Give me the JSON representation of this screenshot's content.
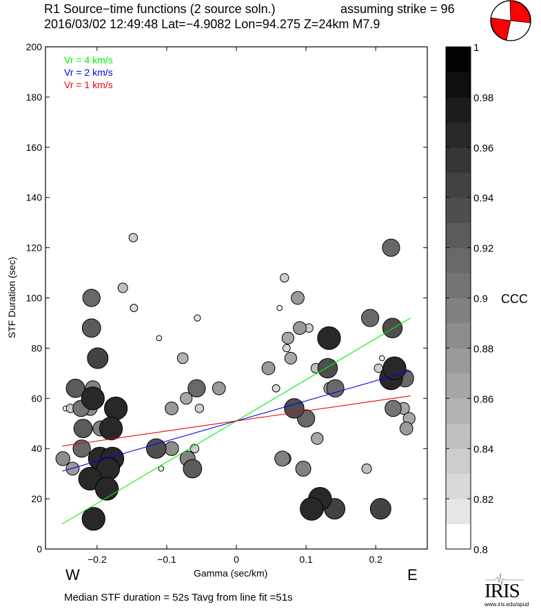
{
  "header": {
    "title": "R1 Source−time functions (2 source soln.)",
    "strike_text": "assuming strike = 96",
    "subtitle": "2016/03/02 12:49:48  Lat=−4.9082 Lon=94.275  Z=24km  M7.9"
  },
  "footer": {
    "summary": "Median STF duration = 52s    Tavg from line fit =51s",
    "west_label": "W",
    "east_label": "E",
    "logo_text": "IRIS",
    "logo_url": "www.iris.edu/spud"
  },
  "colors": {
    "vr4": "#00ee00",
    "vr2": "#0000ee",
    "vr1": "#ee0000",
    "beachball": "#ff0000"
  },
  "chart_data": {
    "type": "scatter",
    "title": "R1 Source−time functions (2 source soln.)",
    "xlabel": "Gamma (sec/km)",
    "ylabel": "STF Duration (sec)",
    "xlim": [
      -0.274,
      0.274
    ],
    "ylim": [
      0,
      200
    ],
    "xticks": [
      -0.2,
      -0.1,
      0,
      0.1,
      0.2
    ],
    "xtick_labels": [
      "−0.2",
      "−0.1",
      "0",
      "0.1",
      "0.2"
    ],
    "yticks": [
      0,
      20,
      40,
      60,
      80,
      100,
      120,
      140,
      160,
      180,
      200
    ],
    "ytick_labels": [
      "0",
      "20",
      "40",
      "60",
      "80",
      "100",
      "120",
      "140",
      "160",
      "180",
      "200"
    ],
    "grid": false,
    "legend": {
      "placement": "top-left",
      "entries": [
        "Vr = 4 km/s",
        "Vr = 2 km/s",
        "Vr = 1 km/s"
      ]
    },
    "lines": [
      {
        "name": "Vr = 4 km/s",
        "x": [
          -0.25,
          0.25
        ],
        "y": [
          10,
          92
        ],
        "color": "#00ee00"
      },
      {
        "name": "Vr = 2 km/s",
        "x": [
          -0.25,
          0.25
        ],
        "y": [
          31,
          71
        ],
        "color": "#0000ee"
      },
      {
        "name": "Vr = 1 km/s",
        "x": [
          -0.25,
          0.25
        ],
        "y": [
          41,
          61
        ],
        "color": "#ee0000"
      }
    ],
    "colorbar": {
      "label": "CCC",
      "range": [
        0.8,
        1
      ],
      "ticks": [
        0.8,
        0.82,
        0.84,
        0.86,
        0.88,
        0.9,
        0.92,
        0.94,
        0.96,
        0.98,
        1
      ],
      "tick_labels": [
        "0.8",
        "0.82",
        "0.84",
        "0.86",
        "0.88",
        "0.9",
        "0.92",
        "0.94",
        "0.96",
        "0.98",
        "1"
      ],
      "bands": 20
    },
    "points": [
      {
        "x": -0.148,
        "y": 124,
        "ccc": 0.84
      },
      {
        "x": -0.163,
        "y": 104,
        "ccc": 0.85
      },
      {
        "x": -0.147,
        "y": 96,
        "ccc": 0.83
      },
      {
        "x": -0.111,
        "y": 84,
        "ccc": 0.81
      },
      {
        "x": -0.208,
        "y": 100,
        "ccc": 0.92
      },
      {
        "x": -0.208,
        "y": 88,
        "ccc": 0.93
      },
      {
        "x": -0.199,
        "y": 76,
        "ccc": 0.95
      },
      {
        "x": -0.231,
        "y": 64,
        "ccc": 0.93
      },
      {
        "x": -0.228,
        "y": 64,
        "ccc": 0.89
      },
      {
        "x": -0.206,
        "y": 60,
        "ccc": 0.97
      },
      {
        "x": -0.206,
        "y": 64,
        "ccc": 0.9
      },
      {
        "x": -0.245,
        "y": 56,
        "ccc": 0.81
      },
      {
        "x": -0.238,
        "y": 56,
        "ccc": 0.84
      },
      {
        "x": -0.223,
        "y": 56,
        "ccc": 0.91
      },
      {
        "x": -0.21,
        "y": 56,
        "ccc": 0.89
      },
      {
        "x": -0.173,
        "y": 56,
        "ccc": 0.97
      },
      {
        "x": -0.22,
        "y": 48,
        "ccc": 0.93
      },
      {
        "x": -0.195,
        "y": 48,
        "ccc": 0.9
      },
      {
        "x": -0.18,
        "y": 48,
        "ccc": 0.97
      },
      {
        "x": -0.222,
        "y": 40,
        "ccc": 0.92
      },
      {
        "x": -0.249,
        "y": 36,
        "ccc": 0.89
      },
      {
        "x": -0.235,
        "y": 32,
        "ccc": 0.88
      },
      {
        "x": -0.196,
        "y": 36,
        "ccc": 0.97
      },
      {
        "x": -0.178,
        "y": 36,
        "ccc": 0.97
      },
      {
        "x": -0.184,
        "y": 32,
        "ccc": 0.97
      },
      {
        "x": -0.21,
        "y": 28,
        "ccc": 0.97
      },
      {
        "x": -0.186,
        "y": 24,
        "ccc": 0.97
      },
      {
        "x": -0.205,
        "y": 12,
        "ccc": 0.97
      },
      {
        "x": -0.115,
        "y": 40,
        "ccc": 0.94
      },
      {
        "x": -0.108,
        "y": 32,
        "ccc": 0.81
      },
      {
        "x": -0.093,
        "y": 40,
        "ccc": 0.89
      },
      {
        "x": -0.093,
        "y": 56,
        "ccc": 0.88
      },
      {
        "x": -0.077,
        "y": 76,
        "ccc": 0.86
      },
      {
        "x": -0.072,
        "y": 60,
        "ccc": 0.87
      },
      {
        "x": -0.07,
        "y": 36,
        "ccc": 0.9
      },
      {
        "x": -0.063,
        "y": 32,
        "ccc": 0.93
      },
      {
        "x": -0.06,
        "y": 40,
        "ccc": 0.84
      },
      {
        "x": -0.057,
        "y": 64,
        "ccc": 0.92
      },
      {
        "x": -0.056,
        "y": 92,
        "ccc": 0.82
      },
      {
        "x": -0.053,
        "y": 56,
        "ccc": 0.84
      },
      {
        "x": -0.025,
        "y": 64,
        "ccc": 0.88
      },
      {
        "x": 0.046,
        "y": 72,
        "ccc": 0.88
      },
      {
        "x": 0.057,
        "y": 64,
        "ccc": 0.83
      },
      {
        "x": 0.062,
        "y": 96,
        "ccc": 0.81
      },
      {
        "x": 0.069,
        "y": 108,
        "ccc": 0.84
      },
      {
        "x": 0.072,
        "y": 80,
        "ccc": 0.83
      },
      {
        "x": 0.074,
        "y": 84,
        "ccc": 0.87
      },
      {
        "x": 0.078,
        "y": 76,
        "ccc": 0.87
      },
      {
        "x": 0.066,
        "y": 36,
        "ccc": 0.9
      },
      {
        "x": 0.069,
        "y": 36,
        "ccc": 0.88
      },
      {
        "x": 0.083,
        "y": 56,
        "ccc": 0.94
      },
      {
        "x": 0.088,
        "y": 100,
        "ccc": 0.88
      },
      {
        "x": 0.091,
        "y": 88,
        "ccc": 0.88
      },
      {
        "x": 0.1,
        "y": 52,
        "ccc": 0.92
      },
      {
        "x": 0.096,
        "y": 32,
        "ccc": 0.9
      },
      {
        "x": 0.104,
        "y": 88,
        "ccc": 0.84
      },
      {
        "x": 0.114,
        "y": 72,
        "ccc": 0.85
      },
      {
        "x": 0.116,
        "y": 44,
        "ccc": 0.87
      },
      {
        "x": 0.12,
        "y": 20,
        "ccc": 0.97
      },
      {
        "x": 0.108,
        "y": 16,
        "ccc": 0.97
      },
      {
        "x": 0.111,
        "y": 16,
        "ccc": 0.94
      },
      {
        "x": 0.131,
        "y": 72,
        "ccc": 0.94
      },
      {
        "x": 0.133,
        "y": 84,
        "ccc": 0.97
      },
      {
        "x": 0.134,
        "y": 64,
        "ccc": 0.87
      },
      {
        "x": 0.142,
        "y": 64,
        "ccc": 0.92
      },
      {
        "x": 0.141,
        "y": 16,
        "ccc": 0.95
      },
      {
        "x": 0.187,
        "y": 32,
        "ccc": 0.85
      },
      {
        "x": 0.192,
        "y": 92,
        "ccc": 0.92
      },
      {
        "x": 0.204,
        "y": 72,
        "ccc": 0.84
      },
      {
        "x": 0.207,
        "y": 16,
        "ccc": 0.95
      },
      {
        "x": 0.209,
        "y": 76,
        "ccc": 0.81
      },
      {
        "x": 0.222,
        "y": 120,
        "ccc": 0.92
      },
      {
        "x": 0.224,
        "y": 88,
        "ccc": 0.94
      },
      {
        "x": 0.224,
        "y": 72,
        "ccc": 0.93
      },
      {
        "x": 0.222,
        "y": 68,
        "ccc": 0.97
      },
      {
        "x": 0.227,
        "y": 72,
        "ccc": 0.97
      },
      {
        "x": 0.242,
        "y": 68,
        "ccc": 0.92
      },
      {
        "x": 0.225,
        "y": 56,
        "ccc": 0.91
      },
      {
        "x": 0.24,
        "y": 56,
        "ccc": 0.87
      },
      {
        "x": 0.248,
        "y": 52,
        "ccc": 0.87
      },
      {
        "x": 0.244,
        "y": 48,
        "ccc": 0.88
      }
    ]
  }
}
